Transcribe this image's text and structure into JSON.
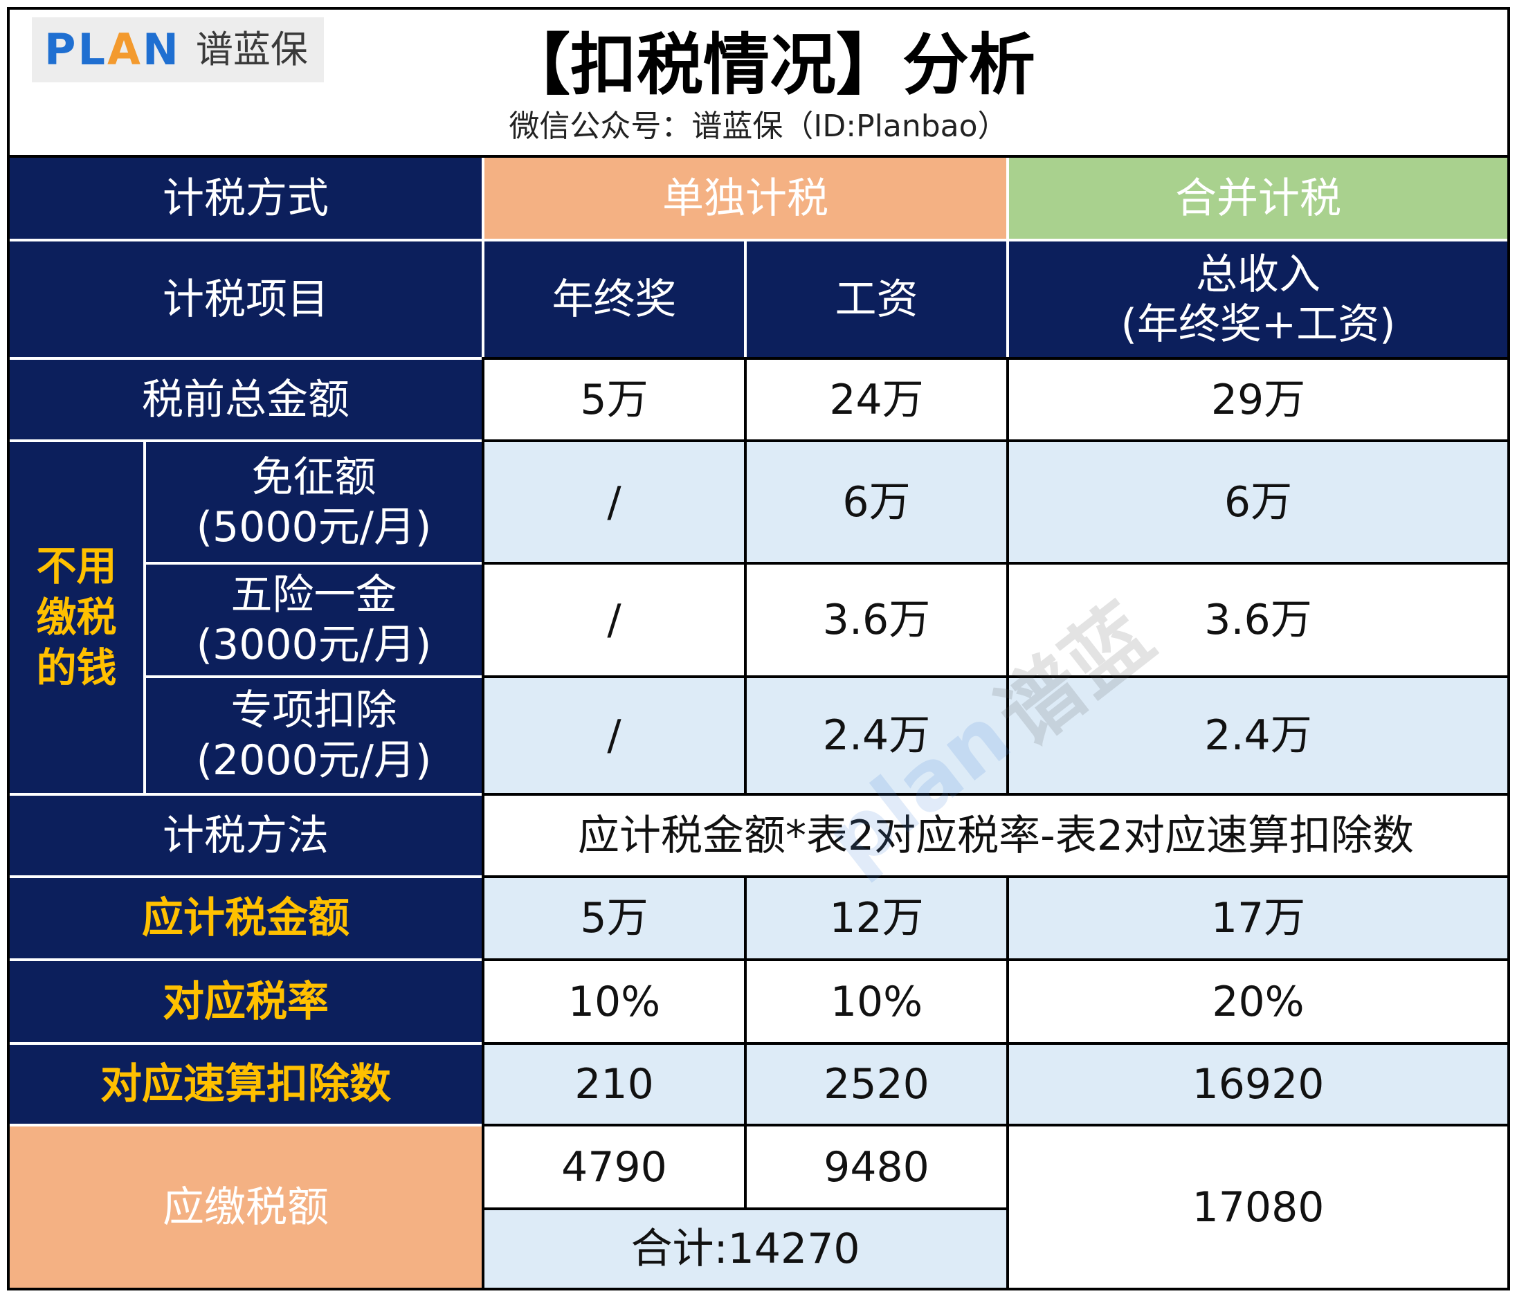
{
  "header": {
    "logo": {
      "part_pl": "PL",
      "part_a": "A",
      "part_n": "N",
      "name": "谱蓝保"
    },
    "title": "【扣税情况】分析",
    "subtitle": "微信公众号：谱蓝保（ID:Planbao）"
  },
  "table": {
    "method": {
      "label": "计税方式",
      "separate": "单独计税",
      "combined": "合并计税"
    },
    "items": {
      "label": "计税项目",
      "bonus": "年终奖",
      "salary": "工资",
      "total": "总收入",
      "total_note": "(年终奖+工资)"
    },
    "pretax_total": {
      "label": "税前总金额",
      "bonus": "5万",
      "salary": "24万",
      "total": "29万"
    },
    "tax_free_group": "不用缴税的钱",
    "tax_free_rows": [
      {
        "label": "免征额",
        "note": "(5000元/月)",
        "bonus": "/",
        "salary": "6万",
        "total": "6万"
      },
      {
        "label": "五险一金",
        "note": "(3000元/月)",
        "bonus": "/",
        "salary": "3.6万",
        "total": "3.6万"
      },
      {
        "label": "专项扣除",
        "note": "(2000元/月)",
        "bonus": "/",
        "salary": "2.4万",
        "total": "2.4万"
      }
    ],
    "formula": {
      "label": "计税方法",
      "text": "应计税金额*表2对应税率-表2对应速算扣除数"
    },
    "taxable_amount": {
      "label": "应计税金额",
      "bonus": "5万",
      "salary": "12万",
      "total": "17万"
    },
    "tax_rate": {
      "label": "对应税率",
      "bonus": "10%",
      "salary": "10%",
      "total": "20%"
    },
    "quick_deduction": {
      "label": "对应速算扣除数",
      "bonus": "210",
      "salary": "2520",
      "total": "16920"
    },
    "tax_payable": {
      "label": "应缴税额",
      "bonus": "4790",
      "salary": "9480",
      "separate_sum": "合计:14270",
      "total": "17080"
    }
  },
  "watermark": {
    "brand": "plan",
    "name": "谱蓝"
  },
  "colors": {
    "navy": "#0C1F5C",
    "orange": "#F4B183",
    "green": "#A9D18E",
    "light_blue": "#DDEBF7",
    "yellow": "#FFC000",
    "logo_blue": "#1F6FD1",
    "logo_orange": "#F39A2E",
    "logo_bg": "#EDEDED"
  }
}
